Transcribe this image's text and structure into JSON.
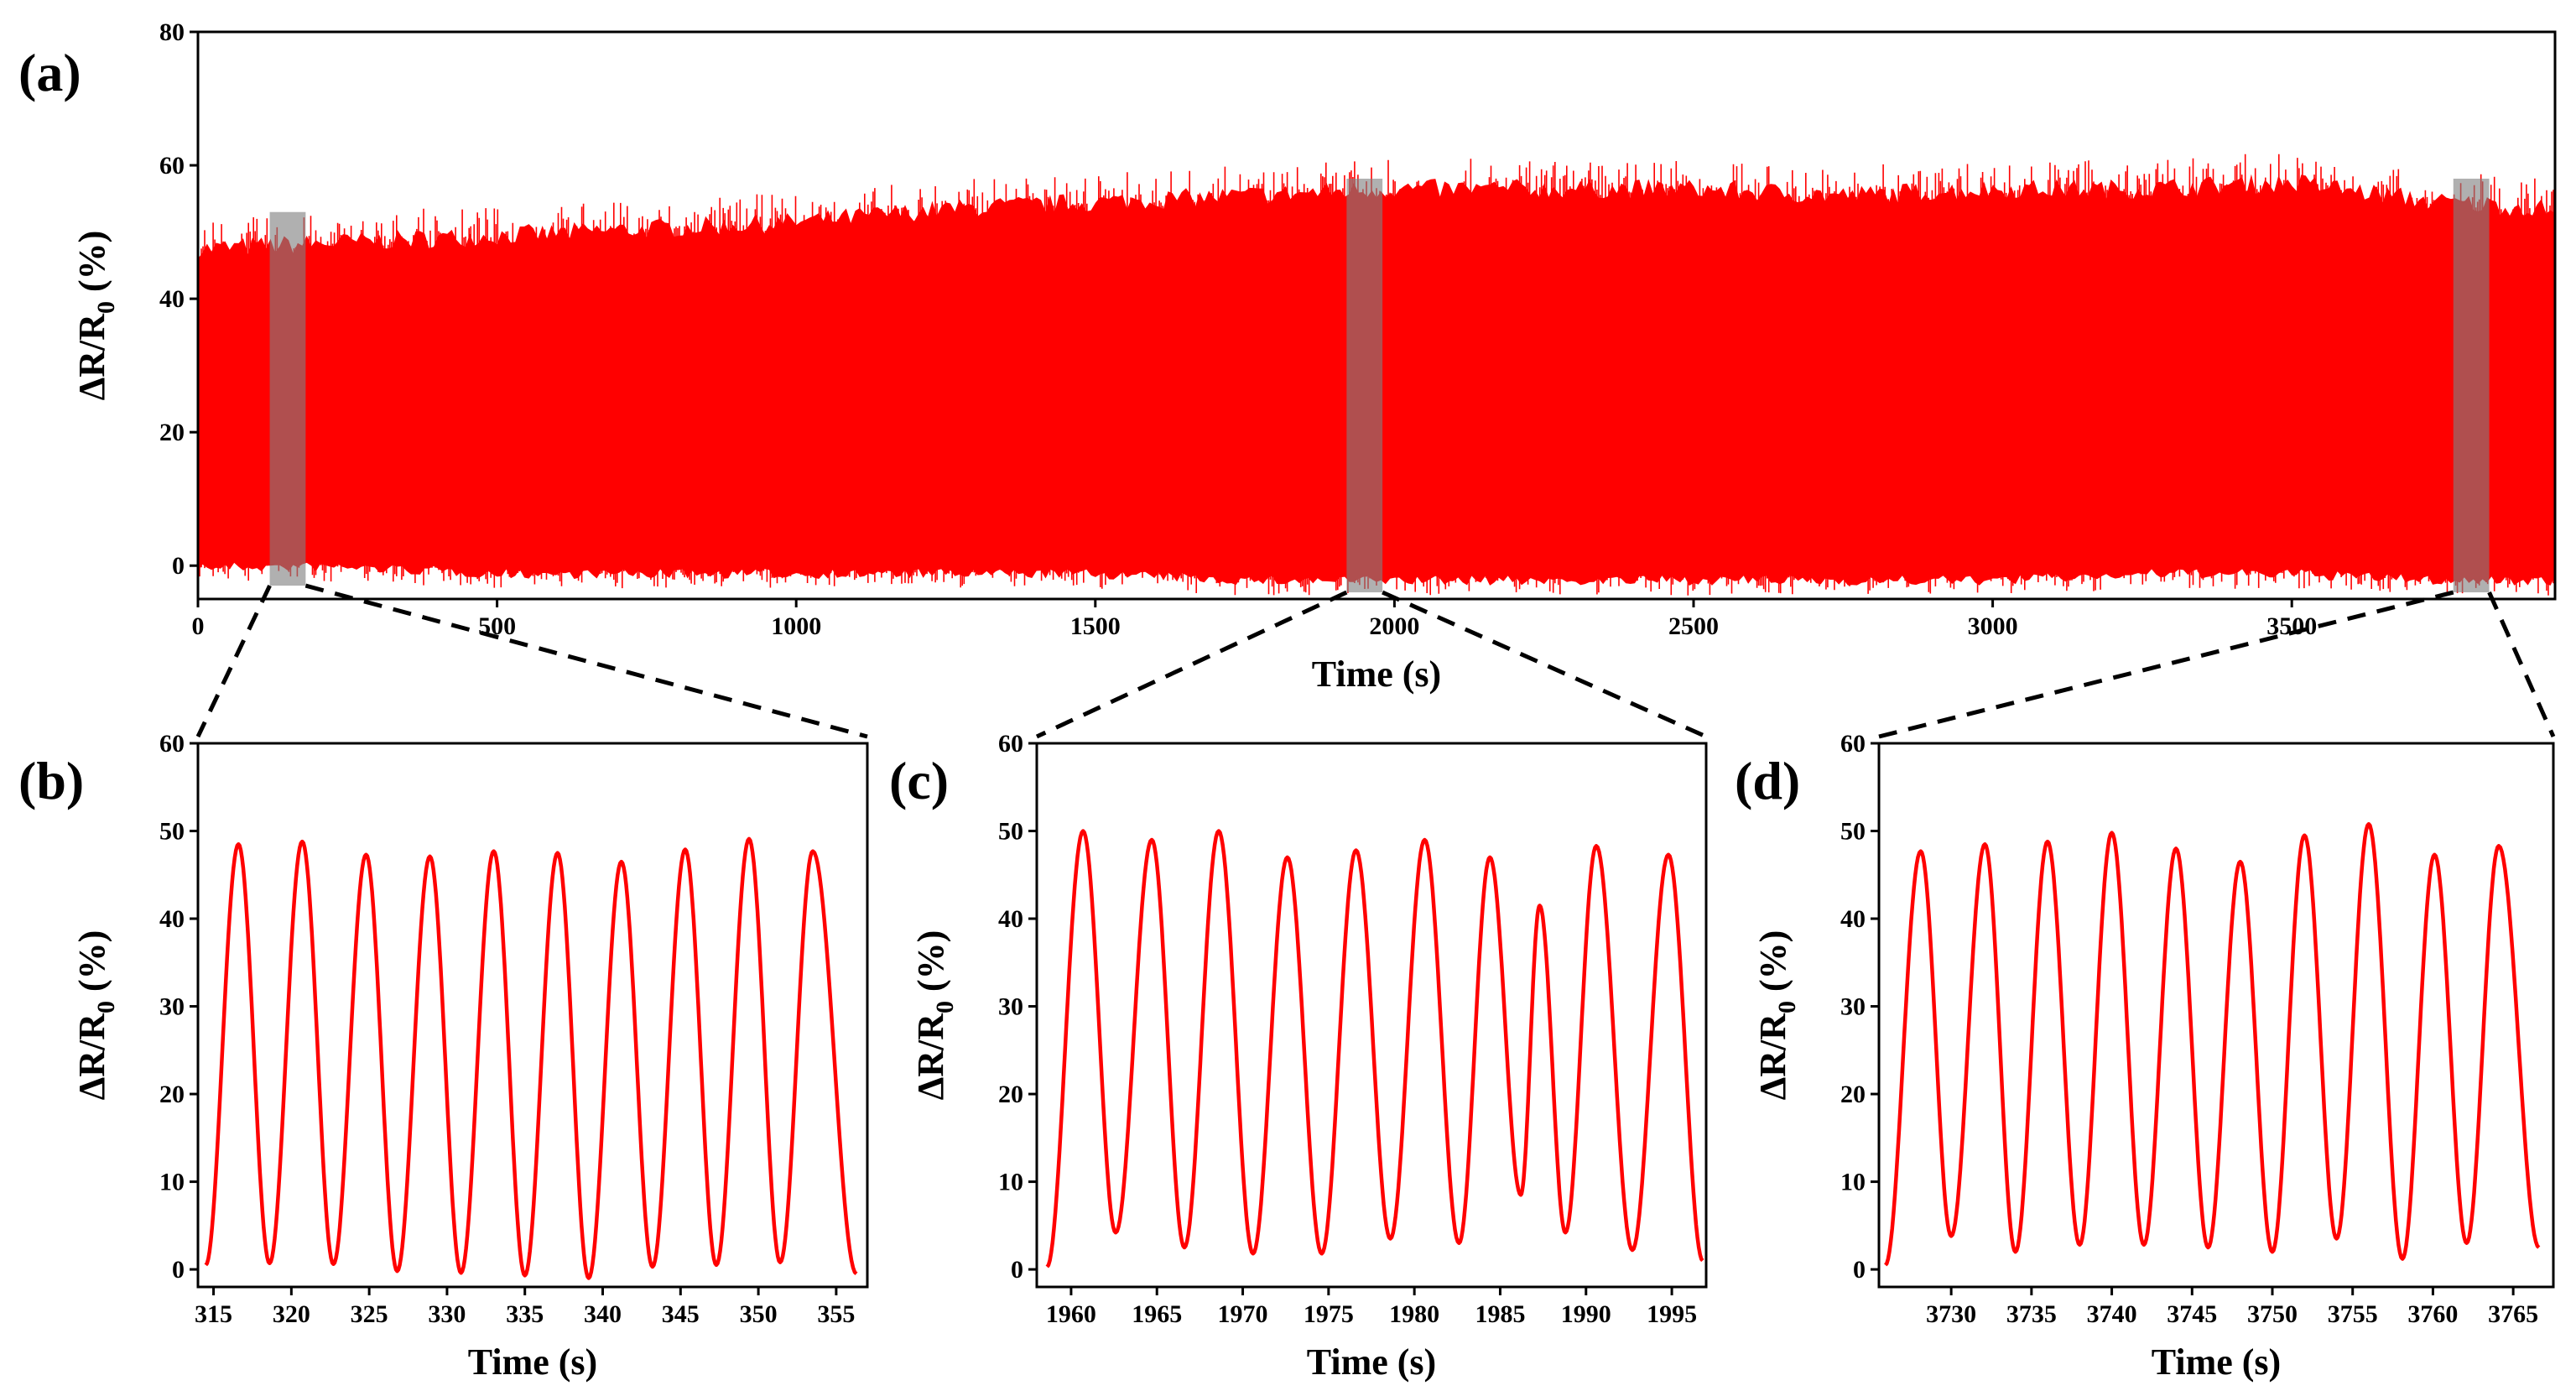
{
  "panel_labels": [
    "(a)",
    "(b)",
    "(c)",
    "(d)"
  ],
  "colors": {
    "signal": "#ff0000",
    "highlight": "#808080",
    "axis": "#000000"
  },
  "chart_data": [
    {
      "id": "a",
      "type": "line",
      "title": "",
      "xlabel": "Time (s)",
      "ylabel_main": "ΔR/R",
      "ylabel_sub": "0",
      "ylabel_tail": " (%)",
      "xlim": [
        0,
        3940
      ],
      "ylim": [
        -5,
        80
      ],
      "xticks": [
        0,
        500,
        1000,
        1500,
        2000,
        2500,
        3000,
        3500
      ],
      "yticks": [
        0,
        20,
        40,
        60,
        80
      ],
      "envelope": {
        "time": [
          0,
          250,
          500,
          750,
          1000,
          1250,
          1500,
          1750,
          2000,
          2250,
          2500,
          2750,
          3000,
          3250,
          3500,
          3750,
          3940
        ],
        "max": [
          48,
          49,
          50,
          51,
          52,
          54,
          55,
          56,
          57,
          57,
          57,
          56,
          57,
          57,
          58,
          55,
          54
        ],
        "min": [
          0,
          0,
          -1,
          -1,
          -1,
          -1,
          -1,
          -2,
          -2,
          -2,
          -2,
          -2,
          -2,
          -1,
          -1,
          -2,
          -2
        ]
      },
      "highlights": [
        {
          "x": [
            120,
            180
          ],
          "y": [
            -3,
            53
          ]
        },
        {
          "x": [
            1920,
            1980
          ],
          "y": [
            -4,
            58
          ]
        },
        {
          "x": [
            3770,
            3830
          ],
          "y": [
            -4,
            58
          ]
        }
      ],
      "grid": false
    },
    {
      "id": "b",
      "type": "line",
      "xlabel": "Time (s)",
      "ylabel_main": "ΔR/R",
      "ylabel_sub": "0",
      "ylabel_tail": " (%)",
      "xlim": [
        314,
        357
      ],
      "ylim": [
        -2,
        60
      ],
      "xticks": [
        315,
        320,
        325,
        330,
        335,
        340,
        345,
        350,
        355
      ],
      "yticks": [
        0,
        10,
        20,
        30,
        40,
        50,
        60
      ],
      "x_start": 314.5,
      "x_end": 356.5,
      "peaks": [
        {
          "t": 316.6,
          "v": 48.5
        },
        {
          "t": 320.7,
          "v": 48.8
        },
        {
          "t": 324.8,
          "v": 47.3
        },
        {
          "t": 328.9,
          "v": 47.1
        },
        {
          "t": 333.0,
          "v": 47.7
        },
        {
          "t": 337.1,
          "v": 47.5
        },
        {
          "t": 341.2,
          "v": 46.5
        },
        {
          "t": 345.3,
          "v": 47.9
        },
        {
          "t": 349.4,
          "v": 49.1
        },
        {
          "t": 353.5,
          "v": 47.7
        }
      ],
      "troughs": [
        {
          "t": 314.5,
          "v": 0.5
        },
        {
          "t": 318.6,
          "v": 0.7
        },
        {
          "t": 322.7,
          "v": 0.6
        },
        {
          "t": 326.8,
          "v": -0.2
        },
        {
          "t": 330.9,
          "v": -0.4
        },
        {
          "t": 335.0,
          "v": -0.7
        },
        {
          "t": 339.1,
          "v": -1.0
        },
        {
          "t": 343.2,
          "v": 0.3
        },
        {
          "t": 347.3,
          "v": 0.5
        },
        {
          "t": 351.4,
          "v": 0.8
        },
        {
          "t": 356.3,
          "v": -0.5
        }
      ],
      "grid": false
    },
    {
      "id": "c",
      "type": "line",
      "xlabel": "Time (s)",
      "ylabel_main": "ΔR/R",
      "ylabel_sub": "0",
      "ylabel_tail": " (%)",
      "xlim": [
        1958,
        1997
      ],
      "ylim": [
        -2,
        60
      ],
      "xticks": [
        1960,
        1965,
        1970,
        1975,
        1980,
        1985,
        1990,
        1995
      ],
      "yticks": [
        0,
        10,
        20,
        30,
        40,
        50,
        60
      ],
      "x_start": 1958.5,
      "x_end": 1996.8,
      "peaks": [
        {
          "t": 1960.7,
          "v": 50.0
        },
        {
          "t": 1964.7,
          "v": 49.0
        },
        {
          "t": 1968.6,
          "v": 50.0
        },
        {
          "t": 1972.6,
          "v": 47.0
        },
        {
          "t": 1976.6,
          "v": 47.8
        },
        {
          "t": 1980.6,
          "v": 49.0
        },
        {
          "t": 1984.4,
          "v": 47.0
        },
        {
          "t": 1987.3,
          "v": 41.5
        },
        {
          "t": 1990.6,
          "v": 48.3
        },
        {
          "t": 1994.8,
          "v": 47.3
        }
      ],
      "troughs": [
        {
          "t": 1958.6,
          "v": 0.3
        },
        {
          "t": 1962.6,
          "v": 4.2
        },
        {
          "t": 1966.6,
          "v": 2.5
        },
        {
          "t": 1970.6,
          "v": 1.8
        },
        {
          "t": 1974.6,
          "v": 1.8
        },
        {
          "t": 1978.6,
          "v": 3.5
        },
        {
          "t": 1982.6,
          "v": 3.0
        },
        {
          "t": 1986.2,
          "v": 8.5
        },
        {
          "t": 1988.8,
          "v": 4.2
        },
        {
          "t": 1992.7,
          "v": 2.2
        },
        {
          "t": 1996.8,
          "v": 1.0
        }
      ],
      "grid": false
    },
    {
      "id": "d",
      "type": "line",
      "xlabel": "Time (s)",
      "ylabel_main": "ΔR/R",
      "ylabel_sub": "0",
      "ylabel_tail": " (%)",
      "xlim": [
        3725.5,
        3767.5
      ],
      "ylim": [
        -2,
        60
      ],
      "xticks": [
        3730,
        3735,
        3740,
        3745,
        3750,
        3755,
        3760,
        3765
      ],
      "yticks": [
        0,
        10,
        20,
        30,
        40,
        50,
        60
      ],
      "x_start": 3725.8,
      "x_end": 3766.8,
      "peaks": [
        {
          "t": 3728.1,
          "v": 47.7
        },
        {
          "t": 3732.1,
          "v": 48.5
        },
        {
          "t": 3736.0,
          "v": 48.8
        },
        {
          "t": 3740.0,
          "v": 49.8
        },
        {
          "t": 3744.0,
          "v": 48.0
        },
        {
          "t": 3748.0,
          "v": 46.5
        },
        {
          "t": 3752.0,
          "v": 49.5
        },
        {
          "t": 3756.0,
          "v": 50.8
        },
        {
          "t": 3760.1,
          "v": 47.3
        },
        {
          "t": 3764.1,
          "v": 48.3
        }
      ],
      "troughs": [
        {
          "t": 3725.9,
          "v": 0.5
        },
        {
          "t": 3730.0,
          "v": 3.8
        },
        {
          "t": 3734.0,
          "v": 2.0
        },
        {
          "t": 3738.0,
          "v": 2.8
        },
        {
          "t": 3742.0,
          "v": 2.8
        },
        {
          "t": 3746.0,
          "v": 2.5
        },
        {
          "t": 3750.0,
          "v": 2.0
        },
        {
          "t": 3754.0,
          "v": 3.5
        },
        {
          "t": 3758.1,
          "v": 1.2
        },
        {
          "t": 3762.1,
          "v": 3.0
        },
        {
          "t": 3766.6,
          "v": 2.5
        }
      ],
      "grid": false
    }
  ]
}
